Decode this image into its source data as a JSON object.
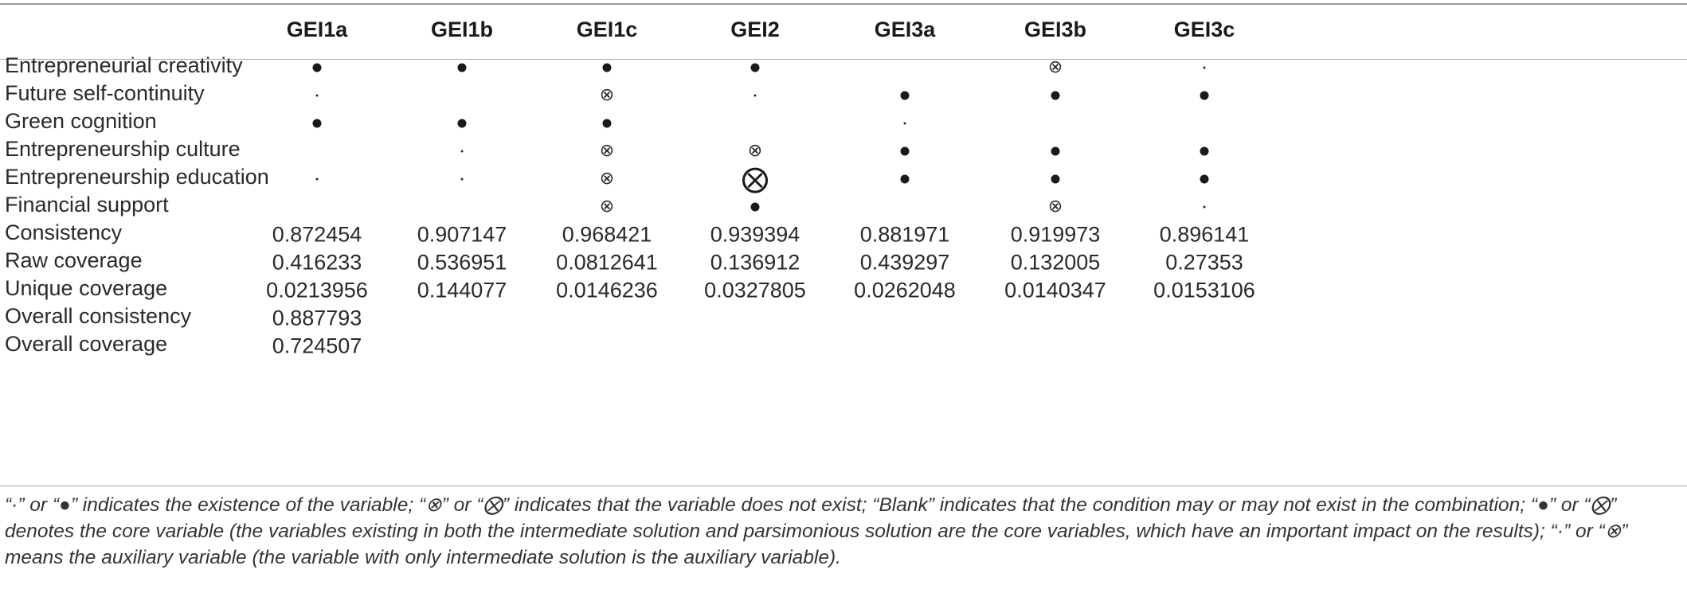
{
  "columns": [
    "GEI1a",
    "GEI1b",
    "GEI1c",
    "GEI2",
    "GEI3a",
    "GEI3b",
    "GEI3c"
  ],
  "condition_rows": [
    {
      "label": "Entrepreneurial creativity",
      "cells": [
        "core-present",
        "core-present",
        "core-present",
        "core-present",
        "blank",
        "aux-absent",
        "aux-present"
      ]
    },
    {
      "label": "Future self-continuity",
      "cells": [
        "aux-present",
        "blank",
        "aux-absent",
        "aux-present",
        "core-present",
        "core-present",
        "core-present"
      ]
    },
    {
      "label": "Green cognition",
      "cells": [
        "core-present",
        "core-present",
        "core-present",
        "blank",
        "aux-present",
        "blank",
        "blank"
      ]
    },
    {
      "label": "Entrepreneurship culture",
      "cells": [
        "blank",
        "aux-present",
        "aux-absent",
        "aux-absent",
        "core-present",
        "core-present",
        "core-present"
      ]
    },
    {
      "label": "Entrepreneurship education",
      "cells": [
        "aux-present",
        "aux-present",
        "aux-absent",
        "core-absent",
        "core-present",
        "core-present",
        "core-present"
      ]
    },
    {
      "label": "Financial support",
      "cells": [
        "blank",
        "blank",
        "aux-absent",
        "core-present",
        "blank",
        "aux-absent",
        "aux-present"
      ]
    }
  ],
  "metric_rows": [
    {
      "label": "Consistency",
      "values": [
        "0.872454",
        "0.907147",
        "0.968421",
        "0.939394",
        "0.881971",
        "0.919973",
        "0.896141"
      ]
    },
    {
      "label": "Raw coverage",
      "values": [
        "0.416233",
        "0.536951",
        "0.0812641",
        "0.136912",
        "0.439297",
        "0.132005",
        "0.27353"
      ]
    },
    {
      "label": "Unique coverage",
      "values": [
        "0.0213956",
        "0.144077",
        "0.0146236",
        "0.0327805",
        "0.0262048",
        "0.0140347",
        "0.0153106"
      ]
    },
    {
      "label": "Overall consistency",
      "values": [
        "0.887793",
        "",
        "",
        "",
        "",
        "",
        ""
      ]
    },
    {
      "label": "Overall coverage",
      "values": [
        "0.724507",
        "",
        "",
        "",
        "",
        "",
        ""
      ]
    }
  ],
  "footnote": "“·” or “●” indicates the existence of the variable; “⊗” or “⨂” indicates that the variable does not exist; “Blank” indicates that the condition may or may not exist in the combination; “●” or “⨂” denotes the core variable (the variables existing in both the intermediate solution and parsimonious solution are the core variables, which have an important impact on the results); “·” or “⊗” means the auxiliary variable (the variable with only intermediate solution is the auxiliary variable)."
}
